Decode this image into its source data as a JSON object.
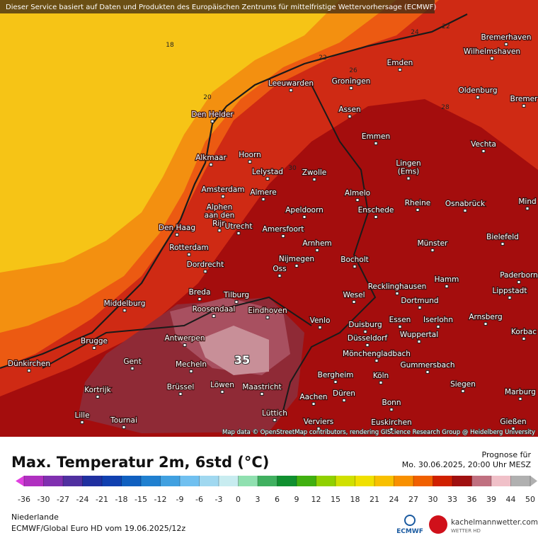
{
  "notice": "Dieser Service basiert auf Daten und Produkten des Europäischen Zentrums für mittelfristige Wettervorhersage (ECMWF)",
  "cities": [
    [
      "Bremerhaven"
    ],
    [
      "Wilhelmshaven"
    ],
    [
      "Emden"
    ],
    [
      "Leeuwarden"
    ],
    [
      "Groningen"
    ],
    [
      "Oldenburg"
    ],
    [
      "Bremer"
    ],
    [
      "Den Helder"
    ],
    [
      "Assen"
    ],
    [
      "Emmen"
    ],
    [
      "Vechta"
    ],
    [
      "Alkmaar"
    ],
    [
      "Hoorn"
    ],
    [
      "Lelystad"
    ],
    [
      "Zwolle"
    ],
    [
      "Lingen",
      "(Ems)"
    ],
    [
      "Amsterdam"
    ],
    [
      "Almere"
    ],
    [
      "Almelo"
    ],
    [
      "Rheine"
    ],
    [
      "Osnabrück"
    ],
    [
      "Mind"
    ],
    [
      "Alphen",
      "aan den",
      "Rijn"
    ],
    [
      "Apeldoorn"
    ],
    [
      "Enschede"
    ],
    [
      "Den Haag"
    ],
    [
      "Utrecht"
    ],
    [
      "Amersfoort"
    ],
    [
      "Bielefeld"
    ],
    [
      "Rotterdam"
    ],
    [
      "Arnhem"
    ],
    [
      "Münster"
    ],
    [
      "Nijmegen"
    ],
    [
      "Bocholt"
    ],
    [
      "Dordrecht"
    ],
    [
      "Oss"
    ],
    [
      "Hamm"
    ],
    [
      "Paderborn"
    ],
    [
      "Lippstadt"
    ],
    [
      "Recklinghausen"
    ],
    [
      "Breda"
    ],
    [
      "Tilburg"
    ],
    [
      "Wesel"
    ],
    [
      "Middelburg"
    ],
    [
      "Dortmund"
    ],
    [
      "Roosendaal"
    ],
    [
      "Eindhoven"
    ],
    [
      "Arnsberg"
    ],
    [
      "Venlo"
    ],
    [
      "Essen"
    ],
    [
      "Iserlohn"
    ],
    [
      "Duisburg"
    ],
    [
      "Korbac"
    ],
    [
      "Wuppertal"
    ],
    [
      "Antwerpen"
    ],
    [
      "Brugge"
    ],
    [
      "Düsseldorf"
    ],
    [
      "Mönchengladbach"
    ],
    [
      "Dünkirchen"
    ],
    [
      "Gent"
    ],
    [
      "Mecheln"
    ],
    [
      "Gummersbach"
    ],
    [
      "Bergheim"
    ],
    [
      "Köln"
    ],
    [
      "Siegen"
    ],
    [
      "Brüssel"
    ],
    [
      "Löwen"
    ],
    [
      "Maastricht"
    ],
    [
      "Kortrijk"
    ],
    [
      "Düren"
    ],
    [
      "Marburg"
    ],
    [
      "Aachen"
    ],
    [
      "Bonn"
    ],
    [
      "Lille"
    ],
    [
      "Lüttich"
    ],
    [
      "Tournai"
    ],
    [
      "Verviers"
    ],
    [
      "Euskirchen"
    ],
    [
      "Gießen"
    ]
  ],
  "isolines": [
    18,
    20,
    22,
    24,
    22,
    26,
    28,
    30,
    35
  ],
  "attribution": "Map data © OpenStreetMap contributors, rendering GIScience Research Group @ Heidelberg University",
  "title": "Max. Temperatur 2m, 6std (°C)",
  "forecast_label": "Prognose für",
  "forecast_time": "Mo. 30.06.2025, 20:00 Uhr MESZ",
  "colorbar": {
    "ticks": [
      -36,
      -30,
      -27,
      -24,
      -21,
      -18,
      -15,
      -12,
      -9,
      -6,
      -3,
      0,
      3,
      6,
      9,
      12,
      15,
      18,
      21,
      24,
      27,
      30,
      33,
      36,
      39,
      44,
      50
    ],
    "colors": [
      "#e040e0",
      "#b030c0",
      "#8030b0",
      "#5030a0",
      "#2030a0",
      "#1040b0",
      "#1060c0",
      "#2080d0",
      "#40a0e0",
      "#70c0f0",
      "#a0d8f0",
      "#c8ecf0",
      "#90e0b0",
      "#40b060",
      "#109030",
      "#40b010",
      "#90d000",
      "#d0e000",
      "#f0e000",
      "#f8c000",
      "#f89000",
      "#f06000",
      "#d02000",
      "#a01010",
      "#c07080",
      "#f0c0c8",
      "#b0b0b0"
    ]
  },
  "region": "Niederlande",
  "model": "ECMWF/Global Euro HD vom  19.06.2025/12z",
  "logo_ecmwf": "ECMWF",
  "logo_site": "kachelmannwetter.com",
  "logo_sub": "WETTER HD"
}
